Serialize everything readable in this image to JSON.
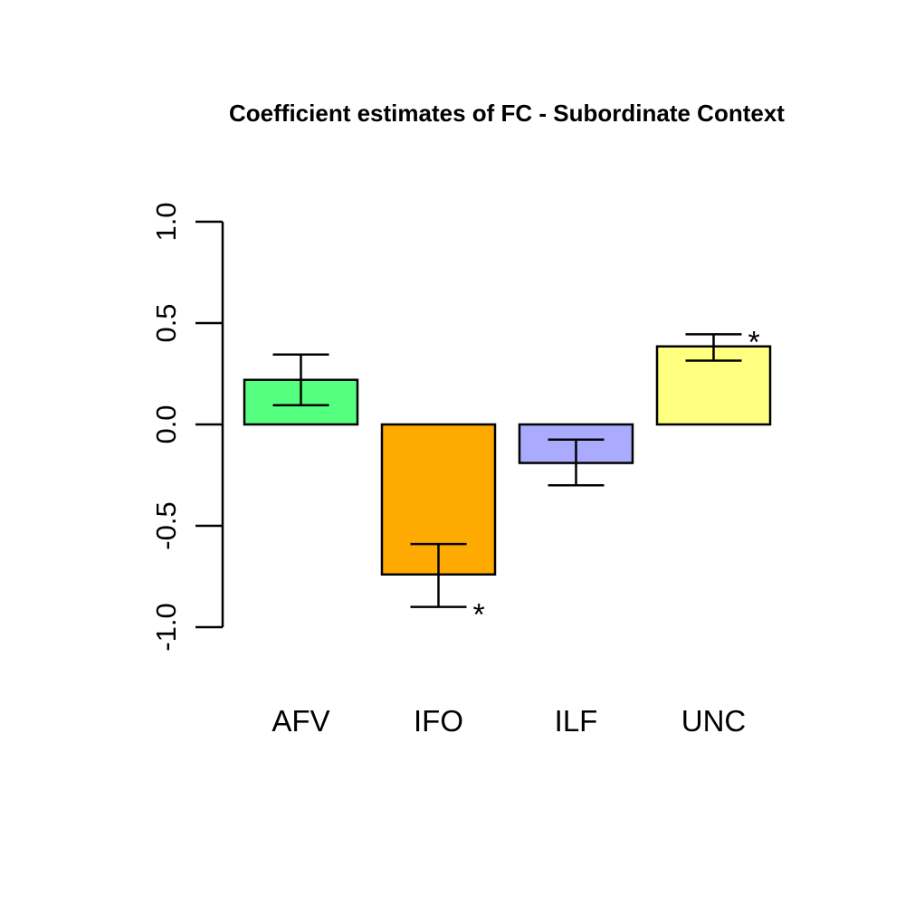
{
  "chart_data": {
    "type": "bar",
    "title": "Coefficient estimates of FC - Subordinate Context",
    "xlabel": "",
    "ylabel": "",
    "ylim": [
      -1.0,
      1.0
    ],
    "yticks": [
      -1.0,
      -0.5,
      0.0,
      0.5,
      1.0
    ],
    "ytick_labels": [
      "-1.0",
      "-0.5",
      "0.0",
      "0.5",
      "1.0"
    ],
    "grid": false,
    "categories": [
      "AFV",
      "IFO",
      "ILF",
      "UNC"
    ],
    "values": [
      0.22,
      -0.74,
      -0.19,
      0.385
    ],
    "error_low": [
      0.095,
      -0.9,
      -0.3,
      0.315
    ],
    "error_high": [
      0.345,
      -0.59,
      -0.075,
      0.445
    ],
    "significance": [
      "",
      "*",
      "",
      "*"
    ],
    "colors": [
      "#55FF7F",
      "#FFAA00",
      "#AAAAFF",
      "#FFFF80"
    ]
  }
}
